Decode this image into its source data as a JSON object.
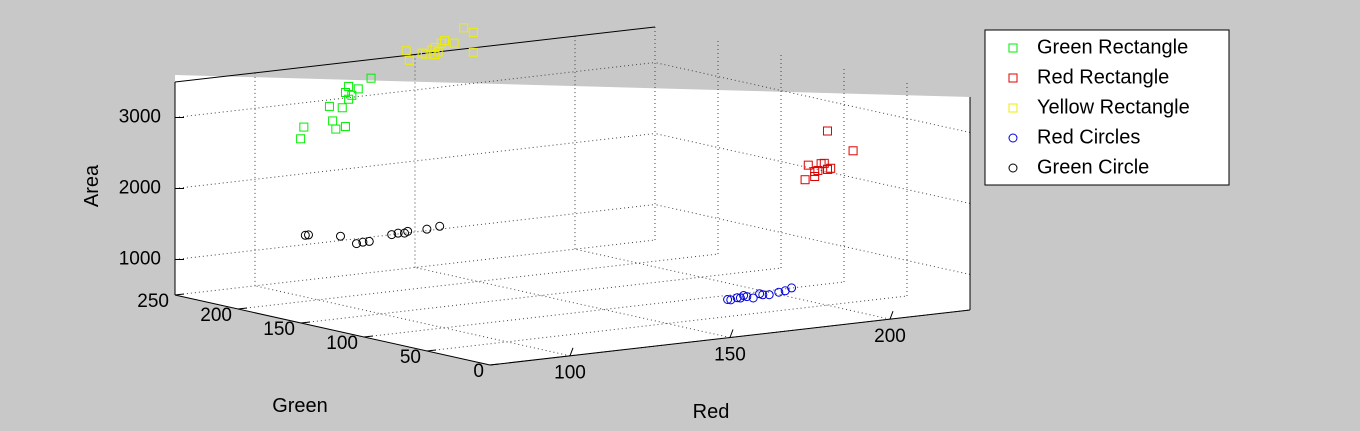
{
  "chart_data": {
    "type": "scatter",
    "projection": "3d",
    "title": "",
    "xlabel": "Red",
    "ylabel": "Green",
    "zlabel": "Area",
    "xlim": [
      75,
      225
    ],
    "ylim": [
      0,
      250
    ],
    "zlim": [
      500,
      3500
    ],
    "xticks": [
      100,
      150,
      200
    ],
    "yticks": [
      0,
      50,
      100,
      150,
      200,
      250
    ],
    "zticks": [
      1000,
      2000,
      3000
    ],
    "grid": true,
    "legend_position": "top-right",
    "colors": {
      "background": "#c8c8c8",
      "axes": "#ffffff",
      "green": "#00ee00",
      "red": "#dd0000",
      "yellow": "#eeee00",
      "blue": "#0000dd",
      "black": "#000000"
    },
    "series": [
      {
        "name": "Green Rectangle",
        "marker": "square",
        "color": "#00ee00",
        "points": [
          [
            94,
            196,
            2980
          ],
          [
            93,
            196,
            2820
          ],
          [
            102,
            196,
            3230
          ],
          [
            103,
            196,
            3020
          ],
          [
            104,
            196,
            2900
          ],
          [
            107,
            196,
            2920
          ],
          [
            106,
            196,
            3190
          ],
          [
            108,
            196,
            3480
          ],
          [
            107,
            196,
            3400
          ],
          [
            111,
            196,
            3430
          ],
          [
            108,
            196,
            3300
          ],
          [
            109,
            196,
            3350
          ],
          [
            115,
            196,
            3560
          ]
        ]
      },
      {
        "name": "Red Rectangle",
        "marker": "square",
        "color": "#dd0000",
        "points": [
          [
            190,
            42,
            2350
          ],
          [
            191,
            42,
            2550
          ],
          [
            193,
            42,
            2380
          ],
          [
            193,
            42,
            2450
          ],
          [
            195,
            42,
            2550
          ],
          [
            194,
            42,
            2460
          ],
          [
            196,
            42,
            2550
          ],
          [
            197,
            42,
            2460
          ],
          [
            197,
            42,
            2460
          ],
          [
            198,
            42,
            2470
          ],
          [
            205,
            42,
            2680
          ],
          [
            197,
            42,
            3000
          ]
        ]
      },
      {
        "name": "Yellow Rectangle",
        "marker": "square",
        "color": "#eeee00",
        "points": [
          [
            124,
            191,
            3920
          ],
          [
            125,
            191,
            3780
          ],
          [
            129,
            191,
            3860
          ],
          [
            132,
            191,
            3890
          ],
          [
            130,
            191,
            3840
          ],
          [
            134,
            191,
            3850
          ],
          [
            133,
            191,
            3920
          ],
          [
            135,
            191,
            3970
          ],
          [
            136,
            191,
            4000
          ],
          [
            133,
            191,
            3820
          ],
          [
            139,
            191,
            3950
          ],
          [
            142,
            191,
            4150
          ],
          [
            145,
            191,
            4070
          ],
          [
            145,
            191,
            3790
          ]
        ]
      },
      {
        "name": "Red Circles",
        "marker": "circle",
        "color": "#0000dd",
        "points": [
          [
            165,
            40,
            800
          ],
          [
            166,
            40,
            790
          ],
          [
            168,
            40,
            810
          ],
          [
            169,
            40,
            800
          ],
          [
            170,
            40,
            830
          ],
          [
            171,
            40,
            810
          ],
          [
            173,
            40,
            780
          ],
          [
            175,
            40,
            830
          ],
          [
            176,
            40,
            810
          ],
          [
            178,
            40,
            800
          ],
          [
            181,
            40,
            820
          ],
          [
            183,
            40,
            830
          ],
          [
            185,
            40,
            860
          ]
        ]
      },
      {
        "name": "Green Circle",
        "marker": "circle",
        "color": "#000000",
        "points": [
          [
            98,
            205,
            1400
          ],
          [
            99,
            205,
            1400
          ],
          [
            109,
            205,
            1330
          ],
          [
            114,
            205,
            1200
          ],
          [
            116,
            205,
            1210
          ],
          [
            118,
            205,
            1210
          ],
          [
            125,
            205,
            1270
          ],
          [
            127,
            205,
            1280
          ],
          [
            129,
            205,
            1270
          ],
          [
            130,
            205,
            1290
          ],
          [
            136,
            205,
            1290
          ],
          [
            140,
            205,
            1310
          ]
        ]
      }
    ]
  }
}
